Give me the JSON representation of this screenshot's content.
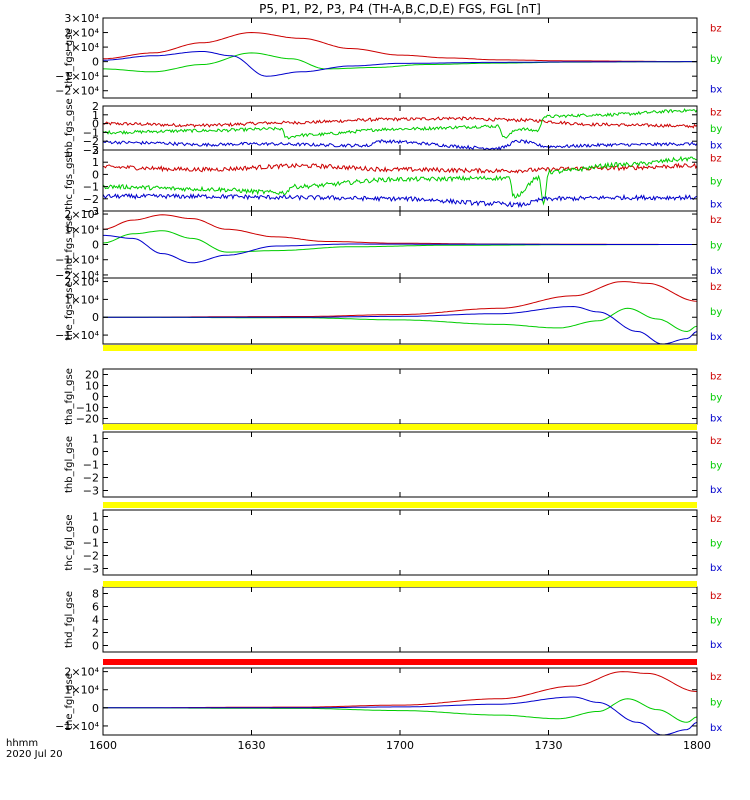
{
  "chart_data": {
    "type": "line",
    "title": "P5, P1, P2, P3, P4 (TH-A,B,C,D,E) FGS, FGL [nT]",
    "x_label": "hhmm",
    "date_label": "2020 Jul 20",
    "x_range_minutes": [
      0,
      120
    ],
    "x_ticks": [
      {
        "m": 0,
        "label": "1600"
      },
      {
        "m": 30,
        "label": "1630"
      },
      {
        "m": 60,
        "label": "1700"
      },
      {
        "m": 90,
        "label": "1730"
      },
      {
        "m": 120,
        "label": "1800"
      }
    ],
    "series_colors": {
      "bx": "#0000cc",
      "by": "#00cc00",
      "bz": "#cc0000"
    },
    "legend": [
      "bz",
      "by",
      "bx"
    ],
    "panels": [
      {
        "ylabel": "tha_fgs_gse",
        "ylim": [
          -25000,
          30000
        ],
        "yticks": [
          "3×10⁴",
          "2×10⁴",
          "1×10⁴",
          "0",
          "−1×10⁴",
          "−2×10⁴"
        ],
        "ytick_values": [
          30000,
          20000,
          10000,
          0,
          -10000,
          -20000
        ],
        "end": 120,
        "series": [
          {
            "name": "bz",
            "points": [
              [
                0,
                2000
              ],
              [
                10,
                6000
              ],
              [
                20,
                13000
              ],
              [
                30,
                20000
              ],
              [
                40,
                16000
              ],
              [
                50,
                9000
              ],
              [
                60,
                4500
              ],
              [
                70,
                2500
              ],
              [
                80,
                1200
              ],
              [
                95,
                500
              ],
              [
                120,
                0
              ]
            ]
          },
          {
            "name": "by",
            "points": [
              [
                0,
                -5000
              ],
              [
                10,
                -7000
              ],
              [
                20,
                -2000
              ],
              [
                30,
                6000
              ],
              [
                38,
                2000
              ],
              [
                45,
                -5000
              ],
              [
                55,
                -4000
              ],
              [
                65,
                -2000
              ],
              [
                80,
                -1000
              ],
              [
                95,
                -300
              ],
              [
                120,
                0
              ]
            ]
          },
          {
            "name": "bx",
            "points": [
              [
                0,
                1000
              ],
              [
                10,
                4000
              ],
              [
                20,
                7000
              ],
              [
                26,
                4000
              ],
              [
                33,
                -10000
              ],
              [
                40,
                -7000
              ],
              [
                50,
                -3000
              ],
              [
                60,
                -1200
              ],
              [
                80,
                -500
              ],
              [
                95,
                -200
              ],
              [
                120,
                0
              ]
            ]
          }
        ]
      },
      {
        "ylabel": "thb_fgs_gse",
        "ylim": [
          -3,
          2
        ],
        "yticks": [
          "2",
          "1",
          "0",
          "−1",
          "−2",
          "−3"
        ],
        "ytick_values": [
          2,
          1,
          0,
          -1,
          -2,
          -3
        ],
        "end": 120,
        "noise": 0.18,
        "series": [
          {
            "name": "bz",
            "points": [
              [
                0,
                0
              ],
              [
                20,
                -0.2
              ],
              [
                36,
                0.1
              ],
              [
                60,
                0.5
              ],
              [
                70,
                0.6
              ],
              [
                84,
                0.4
              ],
              [
                100,
                -0.1
              ],
              [
                110,
                -0.2
              ],
              [
                120,
                -0.3
              ]
            ]
          },
          {
            "name": "by",
            "points": [
              [
                0,
                -1.0
              ],
              [
                20,
                -0.8
              ],
              [
                36,
                -0.6
              ],
              [
                37,
                -1.6
              ],
              [
                40,
                -1.3
              ],
              [
                60,
                -0.6
              ],
              [
                80,
                -0.3
              ],
              [
                81,
                -1.6
              ],
              [
                84,
                -0.6
              ],
              [
                88,
                -0.8
              ],
              [
                89,
                0.8
              ],
              [
                100,
                1.0
              ],
              [
                120,
                1.5
              ]
            ]
          },
          {
            "name": "bx",
            "points": [
              [
                0,
                -2.1
              ],
              [
                10,
                -2.2
              ],
              [
                20,
                -2.4
              ],
              [
                30,
                -2.3
              ],
              [
                54,
                -2.5
              ],
              [
                55,
                -2.0
              ],
              [
                80,
                -2.8
              ],
              [
                84,
                -2.0
              ],
              [
                90,
                -2.6
              ],
              [
                105,
                -2.4
              ],
              [
                120,
                -2.3
              ]
            ]
          }
        ]
      },
      {
        "ylabel": "thc_fgs_gse",
        "ylim": [
          -3,
          2
        ],
        "yticks": [
          "2",
          "1",
          "0",
          "−1",
          "−2",
          "−3"
        ],
        "ytick_values": [
          2,
          1,
          0,
          -1,
          -2,
          -3
        ],
        "end": 120,
        "noise": 0.18,
        "series": [
          {
            "name": "bz",
            "points": [
              [
                0,
                0.6
              ],
              [
                20,
                0.4
              ],
              [
                40,
                0.7
              ],
              [
                60,
                0.4
              ],
              [
                80,
                0.3
              ],
              [
                100,
                0.5
              ],
              [
                120,
                0.7
              ]
            ]
          },
          {
            "name": "by",
            "points": [
              [
                0,
                -1.0
              ],
              [
                20,
                -1.2
              ],
              [
                37,
                -1.5
              ],
              [
                38,
                -1.0
              ],
              [
                60,
                -0.4
              ],
              [
                82,
                -0.3
              ],
              [
                83,
                -1.8
              ],
              [
                88,
                -0.3
              ],
              [
                89,
                -2.4
              ],
              [
                90,
                0.2
              ],
              [
                105,
                0.8
              ],
              [
                120,
                1.3
              ]
            ]
          },
          {
            "name": "bx",
            "points": [
              [
                0,
                -1.8
              ],
              [
                20,
                -1.8
              ],
              [
                40,
                -1.9
              ],
              [
                60,
                -2.0
              ],
              [
                80,
                -2.4
              ],
              [
                84,
                -2.5
              ],
              [
                90,
                -2.0
              ],
              [
                105,
                -1.9
              ],
              [
                120,
                -1.9
              ]
            ]
          }
        ]
      },
      {
        "ylabel": "thd_fgs_gse",
        "ylim": [
          -22000,
          22000
        ],
        "yticks": [
          "2×10⁴",
          "1×10⁴",
          "0",
          "−1×10⁴",
          "−2×10⁴"
        ],
        "ytick_values": [
          20000,
          10000,
          0,
          -10000,
          -20000
        ],
        "end": 120,
        "series": [
          {
            "name": "bz",
            "points": [
              [
                0,
                10000
              ],
              [
                6,
                16000
              ],
              [
                12,
                19500
              ],
              [
                18,
                17000
              ],
              [
                25,
                10000
              ],
              [
                35,
                5000
              ],
              [
                45,
                2000
              ],
              [
                60,
                800
              ],
              [
                80,
                300
              ],
              [
                100,
                100
              ],
              [
                120,
                0
              ]
            ]
          },
          {
            "name": "by",
            "points": [
              [
                0,
                1000
              ],
              [
                6,
                7000
              ],
              [
                12,
                9000
              ],
              [
                18,
                4000
              ],
              [
                25,
                -5000
              ],
              [
                35,
                -4000
              ],
              [
                50,
                -1500
              ],
              [
                70,
                -500
              ],
              [
                100,
                -100
              ],
              [
                120,
                0
              ]
            ]
          },
          {
            "name": "bx",
            "points": [
              [
                0,
                6000
              ],
              [
                6,
                4000
              ],
              [
                12,
                -6000
              ],
              [
                18,
                -12000
              ],
              [
                25,
                -7000
              ],
              [
                35,
                -1000
              ],
              [
                50,
                300
              ],
              [
                70,
                200
              ],
              [
                100,
                0
              ],
              [
                120,
                0
              ]
            ]
          }
        ]
      },
      {
        "ylabel": "the_fgs_gse",
        "ylim": [
          -15000,
          22000
        ],
        "yticks": [
          "2×10⁴",
          "1×10⁴",
          "0",
          "−1×10⁴"
        ],
        "ytick_values": [
          20000,
          10000,
          0,
          -10000
        ],
        "end": 120,
        "series": [
          {
            "name": "bz",
            "points": [
              [
                0,
                0
              ],
              [
                40,
                400
              ],
              [
                60,
                1500
              ],
              [
                80,
                5000
              ],
              [
                95,
                12000
              ],
              [
                105,
                20000
              ],
              [
                110,
                19000
              ],
              [
                120,
                9000
              ]
            ]
          },
          {
            "name": "by",
            "points": [
              [
                0,
                0
              ],
              [
                40,
                -300
              ],
              [
                60,
                -1500
              ],
              [
                80,
                -4000
              ],
              [
                92,
                -6000
              ],
              [
                100,
                -2000
              ],
              [
                106,
                5000
              ],
              [
                112,
                -1000
              ],
              [
                118,
                -8000
              ],
              [
                120,
                -5000
              ]
            ]
          },
          {
            "name": "bx",
            "points": [
              [
                0,
                0
              ],
              [
                40,
                0
              ],
              [
                60,
                500
              ],
              [
                80,
                2000
              ],
              [
                95,
                6000
              ],
              [
                100,
                3000
              ],
              [
                108,
                -8000
              ],
              [
                113,
                -15000
              ],
              [
                118,
                -12000
              ],
              [
                120,
                -8000
              ]
            ]
          }
        ]
      },
      {
        "ylabel": "tha_fgl_gse",
        "ylim": [
          -25,
          25
        ],
        "yticks": [
          "20",
          "10",
          "0",
          "−10",
          "−20"
        ],
        "ytick_values": [
          20,
          10,
          0,
          -10,
          -20
        ],
        "end": 0,
        "series": []
      },
      {
        "ylabel": "thb_fgl_gse",
        "ylim": [
          -3.5,
          1.5
        ],
        "yticks": [
          "1",
          "0",
          "−1",
          "−2",
          "−3"
        ],
        "ytick_values": [
          1,
          0,
          -1,
          -2,
          -3
        ],
        "end": 0,
        "series": []
      },
      {
        "ylabel": "thc_fgl_gse",
        "ylim": [
          -3.5,
          1.5
        ],
        "yticks": [
          "1",
          "0",
          "−1",
          "−2",
          "−3"
        ],
        "ytick_values": [
          1,
          0,
          -1,
          -2,
          -3
        ],
        "end": 0,
        "series": []
      },
      {
        "ylabel": "thd_fgl_gse",
        "ylim": [
          -1,
          9
        ],
        "yticks": [
          "8",
          "6",
          "4",
          "2",
          "0"
        ],
        "ytick_values": [
          8,
          6,
          4,
          2,
          0
        ],
        "end": 0,
        "series": []
      },
      {
        "ylabel": "the_fgl_gse",
        "ylim": [
          -15000,
          22000
        ],
        "yticks": [
          "2×10⁴",
          "1×10⁴",
          "0",
          "−1×10⁴"
        ],
        "ytick_values": [
          20000,
          10000,
          0,
          -10000
        ],
        "end": 120,
        "series": [
          {
            "name": "bz",
            "points": [
              [
                0,
                0
              ],
              [
                40,
                400
              ],
              [
                60,
                1500
              ],
              [
                80,
                5000
              ],
              [
                95,
                12000
              ],
              [
                105,
                20000
              ],
              [
                110,
                19000
              ],
              [
                120,
                9000
              ]
            ]
          },
          {
            "name": "by",
            "points": [
              [
                0,
                0
              ],
              [
                40,
                -300
              ],
              [
                60,
                -1500
              ],
              [
                80,
                -4000
              ],
              [
                92,
                -6000
              ],
              [
                100,
                -2000
              ],
              [
                106,
                5000
              ],
              [
                112,
                -1000
              ],
              [
                118,
                -8000
              ],
              [
                120,
                -5000
              ]
            ]
          },
          {
            "name": "bx",
            "points": [
              [
                0,
                0
              ],
              [
                40,
                0
              ],
              [
                60,
                500
              ],
              [
                80,
                2000
              ],
              [
                95,
                6000
              ],
              [
                100,
                3000
              ],
              [
                108,
                -8000
              ],
              [
                113,
                -15000
              ],
              [
                118,
                -12000
              ],
              [
                120,
                -8000
              ]
            ]
          }
        ]
      }
    ],
    "status_bars": [
      {
        "after_panel": 4,
        "color": "#ffff00"
      },
      {
        "after_panel": 5,
        "color": "#ffff00"
      },
      {
        "after_panel": 6,
        "color": "#ffff00"
      },
      {
        "after_panel": 7,
        "color": "#ffff00"
      },
      {
        "after_panel": 8,
        "color": "#ff0000"
      }
    ]
  }
}
